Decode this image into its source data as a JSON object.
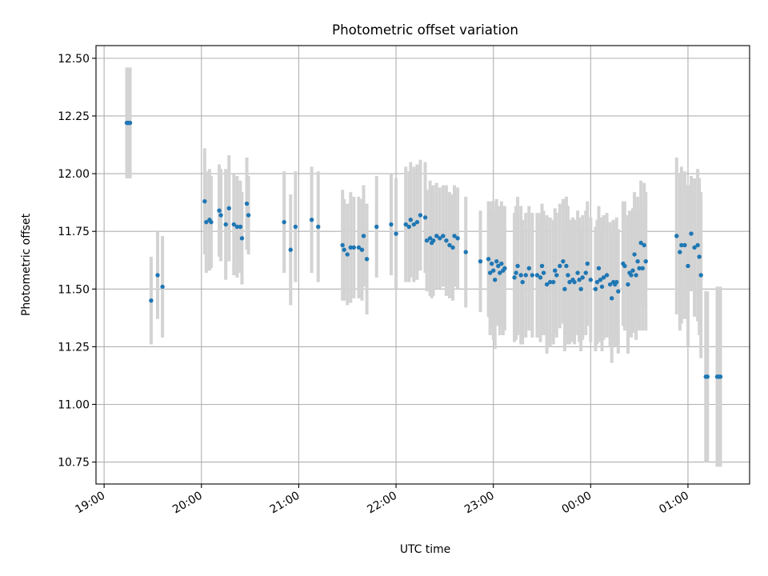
{
  "chart_data": {
    "type": "scatter",
    "title": "Photometric offset variation",
    "xlabel": "UTC time",
    "ylabel": "Photometric offset",
    "x_unit": "hours (UTC, clock time)",
    "xlim": [
      "18:55",
      "25:38"
    ],
    "ylim": [
      10.655,
      12.555
    ],
    "grid": true,
    "x_ticks": [
      {
        "value": "19:00",
        "label": "19:00"
      },
      {
        "value": "20:00",
        "label": "20:00"
      },
      {
        "value": "21:00",
        "label": "21:00"
      },
      {
        "value": "22:00",
        "label": "22:00"
      },
      {
        "value": "23:00",
        "label": "23:00"
      },
      {
        "value": "24:00",
        "label": "00:00"
      },
      {
        "value": "25:00",
        "label": "01:00"
      }
    ],
    "y_ticks": [
      10.75,
      11.0,
      11.25,
      11.5,
      11.75,
      12.0,
      12.25,
      12.5
    ],
    "y_tick_labels": [
      "10.75",
      "11.00",
      "11.25",
      "11.50",
      "11.75",
      "12.00",
      "12.25",
      "12.50"
    ],
    "colors": {
      "point": "#1f77b4",
      "errorbar": "#d3d3d3",
      "grid": "#b0b0b0"
    },
    "points": [
      {
        "x": "19:14",
        "y": 12.22,
        "err": 0.24
      },
      {
        "x": "19:15",
        "y": 12.22,
        "err": 0.24
      },
      {
        "x": "19:16",
        "y": 12.22,
        "err": 0.24
      },
      {
        "x": "19:29",
        "y": 11.45,
        "err": 0.19
      },
      {
        "x": "19:33",
        "y": 11.56,
        "err": 0.19
      },
      {
        "x": "19:36",
        "y": 11.51,
        "err": 0.22
      },
      {
        "x": "20:02",
        "y": 11.88,
        "err": 0.23
      },
      {
        "x": "20:03",
        "y": 11.79,
        "err": 0.22
      },
      {
        "x": "20:05",
        "y": 11.8,
        "err": 0.22
      },
      {
        "x": "20:06",
        "y": 11.79,
        "err": 0.2
      },
      {
        "x": "20:11",
        "y": 11.84,
        "err": 0.2
      },
      {
        "x": "20:12",
        "y": 11.82,
        "err": 0.2
      },
      {
        "x": "20:15",
        "y": 11.78,
        "err": 0.24
      },
      {
        "x": "20:17",
        "y": 11.85,
        "err": 0.23
      },
      {
        "x": "20:20",
        "y": 11.78,
        "err": 0.22
      },
      {
        "x": "20:22",
        "y": 11.77,
        "err": 0.22
      },
      {
        "x": "20:24",
        "y": 11.77,
        "err": 0.2
      },
      {
        "x": "20:25",
        "y": 11.72,
        "err": 0.2
      },
      {
        "x": "20:28",
        "y": 11.87,
        "err": 0.2
      },
      {
        "x": "20:29",
        "y": 11.82,
        "err": 0.17
      },
      {
        "x": "20:51",
        "y": 11.79,
        "err": 0.22
      },
      {
        "x": "20:55",
        "y": 11.67,
        "err": 0.24
      },
      {
        "x": "20:58",
        "y": 11.77,
        "err": 0.24
      },
      {
        "x": "21:08",
        "y": 11.8,
        "err": 0.23
      },
      {
        "x": "21:12",
        "y": 11.77,
        "err": 0.24
      },
      {
        "x": "21:27",
        "y": 11.69,
        "err": 0.24
      },
      {
        "x": "21:28",
        "y": 11.67,
        "err": 0.22
      },
      {
        "x": "21:30",
        "y": 11.65,
        "err": 0.22
      },
      {
        "x": "21:32",
        "y": 11.68,
        "err": 0.24
      },
      {
        "x": "21:34",
        "y": 11.68,
        "err": 0.22
      },
      {
        "x": "21:37",
        "y": 11.68,
        "err": 0.22
      },
      {
        "x": "21:39",
        "y": 11.67,
        "err": 0.22
      },
      {
        "x": "21:40",
        "y": 11.73,
        "err": 0.22
      },
      {
        "x": "21:42",
        "y": 11.63,
        "err": 0.24
      },
      {
        "x": "21:48",
        "y": 11.77,
        "err": 0.22
      },
      {
        "x": "21:57",
        "y": 11.78,
        "err": 0.22
      },
      {
        "x": "22:00",
        "y": 11.74,
        "err": 0.24
      },
      {
        "x": "22:06",
        "y": 11.78,
        "err": 0.25
      },
      {
        "x": "22:08",
        "y": 11.77,
        "err": 0.24
      },
      {
        "x": "22:09",
        "y": 11.8,
        "err": 0.25
      },
      {
        "x": "22:11",
        "y": 11.78,
        "err": 0.25
      },
      {
        "x": "22:13",
        "y": 11.79,
        "err": 0.25
      },
      {
        "x": "22:15",
        "y": 11.82,
        "err": 0.24
      },
      {
        "x": "22:18",
        "y": 11.81,
        "err": 0.24
      },
      {
        "x": "22:19",
        "y": 11.71,
        "err": 0.22
      },
      {
        "x": "22:21",
        "y": 11.72,
        "err": 0.25
      },
      {
        "x": "22:22",
        "y": 11.7,
        "err": 0.24
      },
      {
        "x": "22:23",
        "y": 11.71,
        "err": 0.24
      },
      {
        "x": "22:25",
        "y": 11.73,
        "err": 0.23
      },
      {
        "x": "22:27",
        "y": 11.72,
        "err": 0.22
      },
      {
        "x": "22:29",
        "y": 11.73,
        "err": 0.22
      },
      {
        "x": "22:31",
        "y": 11.71,
        "err": 0.24
      },
      {
        "x": "22:33",
        "y": 11.69,
        "err": 0.23
      },
      {
        "x": "22:35",
        "y": 11.68,
        "err": 0.23
      },
      {
        "x": "22:36",
        "y": 11.73,
        "err": 0.22
      },
      {
        "x": "22:38",
        "y": 11.72,
        "err": 0.22
      },
      {
        "x": "22:43",
        "y": 11.66,
        "err": 0.24
      },
      {
        "x": "22:52",
        "y": 11.62,
        "err": 0.22
      },
      {
        "x": "22:57",
        "y": 11.63,
        "err": 0.25
      },
      {
        "x": "22:58",
        "y": 11.57,
        "err": 0.27
      },
      {
        "x": "22:59",
        "y": 11.61,
        "err": 0.27
      },
      {
        "x": "23:00",
        "y": 11.58,
        "err": 0.3
      },
      {
        "x": "23:01",
        "y": 11.54,
        "err": 0.3
      },
      {
        "x": "23:02",
        "y": 11.62,
        "err": 0.27
      },
      {
        "x": "23:03",
        "y": 11.6,
        "err": 0.26
      },
      {
        "x": "23:04",
        "y": 11.57,
        "err": 0.27
      },
      {
        "x": "23:05",
        "y": 11.61,
        "err": 0.27
      },
      {
        "x": "23:06",
        "y": 11.58,
        "err": 0.28
      },
      {
        "x": "23:07",
        "y": 11.59,
        "err": 0.27
      },
      {
        "x": "23:13",
        "y": 11.55,
        "err": 0.28
      },
      {
        "x": "23:14",
        "y": 11.57,
        "err": 0.29
      },
      {
        "x": "23:15",
        "y": 11.6,
        "err": 0.3
      },
      {
        "x": "23:17",
        "y": 11.56,
        "err": 0.3
      },
      {
        "x": "23:18",
        "y": 11.53,
        "err": 0.27
      },
      {
        "x": "23:20",
        "y": 11.56,
        "err": 0.27
      },
      {
        "x": "23:22",
        "y": 11.59,
        "err": 0.27
      },
      {
        "x": "23:24",
        "y": 11.56,
        "err": 0.27
      },
      {
        "x": "23:27",
        "y": 11.56,
        "err": 0.27
      },
      {
        "x": "23:29",
        "y": 11.55,
        "err": 0.28
      },
      {
        "x": "23:30",
        "y": 11.6,
        "err": 0.27
      },
      {
        "x": "23:31",
        "y": 11.57,
        "err": 0.27
      },
      {
        "x": "23:33",
        "y": 11.52,
        "err": 0.3
      },
      {
        "x": "23:35",
        "y": 11.53,
        "err": 0.28
      },
      {
        "x": "23:37",
        "y": 11.53,
        "err": 0.27
      },
      {
        "x": "23:38",
        "y": 11.58,
        "err": 0.27
      },
      {
        "x": "23:39",
        "y": 11.56,
        "err": 0.27
      },
      {
        "x": "23:41",
        "y": 11.6,
        "err": 0.27
      },
      {
        "x": "23:43",
        "y": 11.62,
        "err": 0.27
      },
      {
        "x": "23:44",
        "y": 11.5,
        "err": 0.27
      },
      {
        "x": "23:45",
        "y": 11.6,
        "err": 0.3
      },
      {
        "x": "23:46",
        "y": 11.56,
        "err": 0.3
      },
      {
        "x": "23:47",
        "y": 11.53,
        "err": 0.27
      },
      {
        "x": "23:49",
        "y": 11.54,
        "err": 0.27
      },
      {
        "x": "23:50",
        "y": 11.53,
        "err": 0.27
      },
      {
        "x": "23:52",
        "y": 11.57,
        "err": 0.27
      },
      {
        "x": "23:53",
        "y": 11.54,
        "err": 0.27
      },
      {
        "x": "23:54",
        "y": 11.5,
        "err": 0.27
      },
      {
        "x": "23:55",
        "y": 11.55,
        "err": 0.27
      },
      {
        "x": "23:57",
        "y": 11.57,
        "err": 0.27
      },
      {
        "x": "23:58",
        "y": 11.61,
        "err": 0.27
      },
      {
        "x": "24:00",
        "y": 11.54,
        "err": 0.27
      },
      {
        "x": "24:03",
        "y": 11.5,
        "err": 0.27
      },
      {
        "x": "24:04",
        "y": 11.53,
        "err": 0.27
      },
      {
        "x": "24:05",
        "y": 11.59,
        "err": 0.27
      },
      {
        "x": "24:06",
        "y": 11.54,
        "err": 0.27
      },
      {
        "x": "24:07",
        "y": 11.51,
        "err": 0.28
      },
      {
        "x": "24:08",
        "y": 11.55,
        "err": 0.27
      },
      {
        "x": "24:10",
        "y": 11.56,
        "err": 0.27
      },
      {
        "x": "24:12",
        "y": 11.52,
        "err": 0.27
      },
      {
        "x": "24:13",
        "y": 11.46,
        "err": 0.28
      },
      {
        "x": "24:14",
        "y": 11.53,
        "err": 0.27
      },
      {
        "x": "24:15",
        "y": 11.52,
        "err": 0.27
      },
      {
        "x": "24:16",
        "y": 11.53,
        "err": 0.28
      },
      {
        "x": "24:17",
        "y": 11.49,
        "err": 0.27
      },
      {
        "x": "24:20",
        "y": 11.61,
        "err": 0.27
      },
      {
        "x": "24:21",
        "y": 11.6,
        "err": 0.28
      },
      {
        "x": "24:23",
        "y": 11.52,
        "err": 0.3
      },
      {
        "x": "24:24",
        "y": 11.57,
        "err": 0.27
      },
      {
        "x": "24:25",
        "y": 11.56,
        "err": 0.27
      },
      {
        "x": "24:26",
        "y": 11.58,
        "err": 0.27
      },
      {
        "x": "24:27",
        "y": 11.65,
        "err": 0.27
      },
      {
        "x": "24:28",
        "y": 11.56,
        "err": 0.28
      },
      {
        "x": "24:29",
        "y": 11.62,
        "err": 0.28
      },
      {
        "x": "24:30",
        "y": 11.59,
        "err": 0.27
      },
      {
        "x": "24:31",
        "y": 11.7,
        "err": 0.27
      },
      {
        "x": "24:32",
        "y": 11.59,
        "err": 0.27
      },
      {
        "x": "24:33",
        "y": 11.69,
        "err": 0.27
      },
      {
        "x": "24:34",
        "y": 11.62,
        "err": 0.3
      },
      {
        "x": "24:53",
        "y": 11.73,
        "err": 0.34
      },
      {
        "x": "24:55",
        "y": 11.66,
        "err": 0.34
      },
      {
        "x": "24:56",
        "y": 11.69,
        "err": 0.34
      },
      {
        "x": "24:58",
        "y": 11.69,
        "err": 0.32
      },
      {
        "x": "25:00",
        "y": 11.6,
        "err": 0.35
      },
      {
        "x": "25:02",
        "y": 11.74,
        "err": 0.25
      },
      {
        "x": "25:04",
        "y": 11.68,
        "err": 0.3
      },
      {
        "x": "25:06",
        "y": 11.69,
        "err": 0.33
      },
      {
        "x": "25:07",
        "y": 11.64,
        "err": 0.34
      },
      {
        "x": "25:08",
        "y": 11.56,
        "err": 0.36
      },
      {
        "x": "25:11",
        "y": 11.12,
        "err": 0.37
      },
      {
        "x": "25:12",
        "y": 11.12,
        "err": 0.37
      },
      {
        "x": "25:18",
        "y": 11.12,
        "err": 0.39
      },
      {
        "x": "25:19",
        "y": 11.12,
        "err": 0.39
      },
      {
        "x": "25:20",
        "y": 11.12,
        "err": 0.39
      }
    ]
  }
}
